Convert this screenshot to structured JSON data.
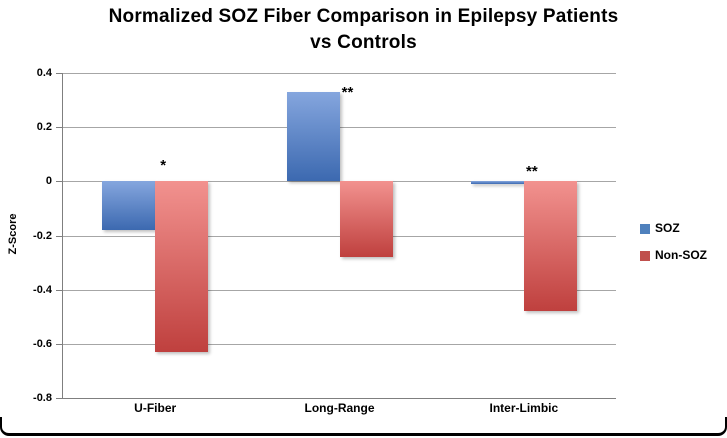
{
  "chart_data": {
    "type": "bar",
    "title_lines": [
      "Normalized SOZ Fiber Comparison in Epilepsy Patients",
      "vs Controls"
    ],
    "ylabel": "Z-Score",
    "xlabel": "",
    "ylim": [
      -0.8,
      0.4
    ],
    "yticks": [
      0.4,
      0.2,
      0,
      -0.2,
      -0.4,
      -0.6,
      -0.8
    ],
    "ytick_labels": [
      "0.4",
      "0.2",
      "0",
      "-0.2",
      "-0.4",
      "-0.6",
      "-0.8"
    ],
    "grid": true,
    "legend_position": "right",
    "categories": [
      "U-Fiber",
      "Long-Range",
      "Inter-Limbic"
    ],
    "series": [
      {
        "name": "SOZ",
        "color": "#4f81bd",
        "gradient_top": "#85a6de",
        "gradient_bottom": "#3c69b0",
        "values": [
          -0.18,
          0.33,
          -0.01
        ]
      },
      {
        "name": "Non-SOZ",
        "color": "#c0504d",
        "gradient_top": "#f2928f",
        "gradient_bottom": "#bf403e",
        "values": [
          -0.63,
          -0.28,
          -0.48
        ]
      }
    ],
    "annotations": [
      {
        "category": "U-Fiber",
        "text": "*",
        "y": 0.06
      },
      {
        "category": "Long-Range",
        "text": "**",
        "y": 0.33
      },
      {
        "category": "Inter-Limbic",
        "text": "**",
        "y": 0.04
      }
    ]
  }
}
